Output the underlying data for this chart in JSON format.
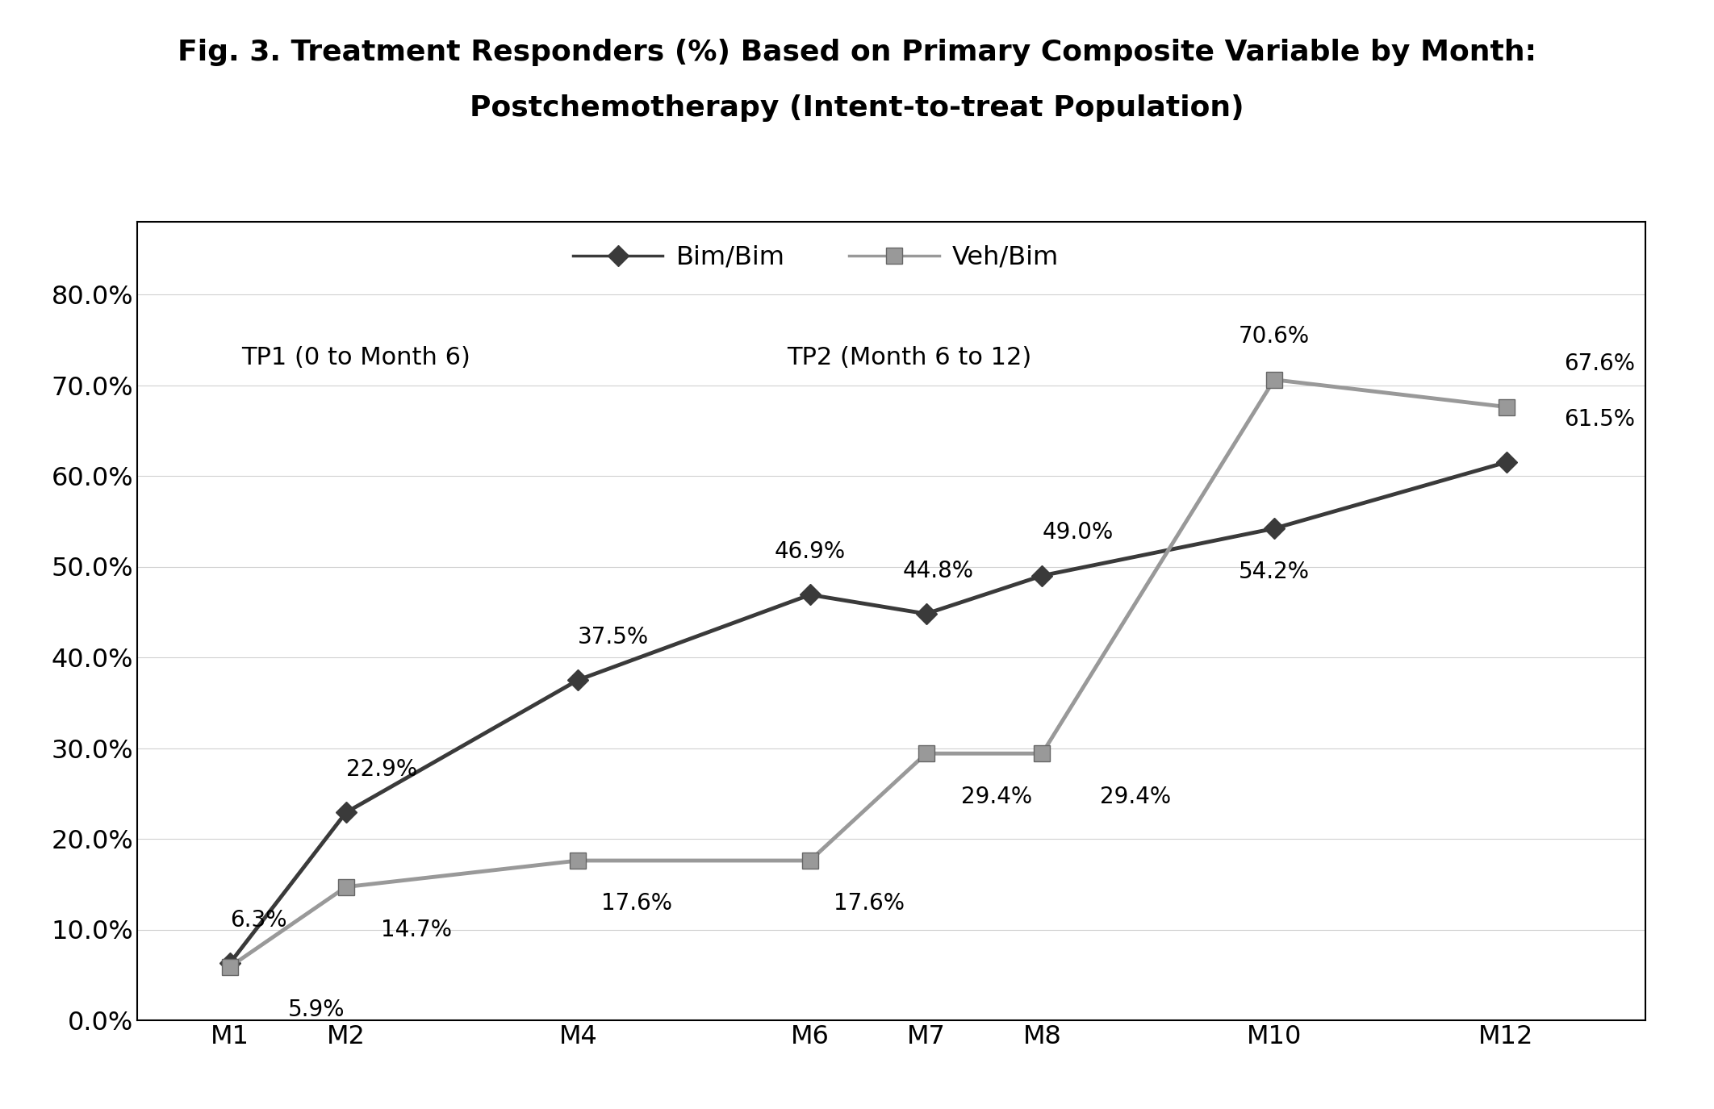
{
  "title_line1": "Fig. 3. Treatment Responders (%) Based on Primary Composite Variable by Month:",
  "title_line2": "Postchemotherapy (Intent-to-treat Population)",
  "x_labels": [
    "M1",
    "M2",
    "M4",
    "M6",
    "M7",
    "M8",
    "M10",
    "M12"
  ],
  "x_positions": [
    1,
    2,
    4,
    6,
    7,
    8,
    10,
    12
  ],
  "bim_bim_values": [
    6.3,
    22.9,
    37.5,
    46.9,
    44.8,
    49.0,
    54.2,
    61.5
  ],
  "veh_bim_values": [
    5.9,
    14.7,
    17.6,
    17.6,
    29.4,
    29.4,
    70.6,
    67.6
  ],
  "bim_bim_labels": [
    "6.3%",
    "22.9%",
    "37.5%",
    "46.9%",
    "44.8%",
    "49.0%",
    "54.2%",
    "61.5%"
  ],
  "veh_bim_labels": [
    "5.9%",
    "14.7%",
    "17.6%",
    "17.6%",
    "29.4%",
    "29.4%",
    "70.6%",
    "67.6%"
  ],
  "bim_bim_color": "#3a3a3a",
  "veh_bim_color": "#999999",
  "veh_bim_edge_color": "#666666",
  "ylim": [
    0.0,
    88.0
  ],
  "yticks": [
    0.0,
    10.0,
    20.0,
    30.0,
    40.0,
    50.0,
    60.0,
    70.0,
    80.0
  ],
  "ytick_labels": [
    "0.0%",
    "10.0%",
    "20.0%",
    "30.0%",
    "40.0%",
    "50.0%",
    "60.0%",
    "70.0%",
    "80.0%"
  ],
  "tp1_text": "TP1 (0 to Month 6)",
  "tp2_text": "TP2 (Month 6 to 12)",
  "legend_bim": "Bim/Bim",
  "legend_veh": "Veh/Bim",
  "background_color": "#ffffff"
}
